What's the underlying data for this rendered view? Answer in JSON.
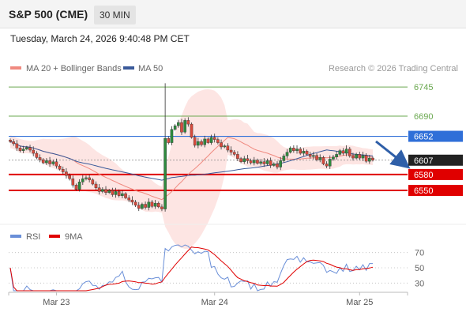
{
  "header": {
    "title": "S&P 500 (CME)",
    "timeframe": "30 MIN"
  },
  "timestamp": "Tuesday, March 24, 2026 9:40:48 PM CET",
  "legend": {
    "ma20_bb": "MA 20 + Bollinger Bands",
    "ma50": "MA 50",
    "copyright": "Research © 2026 Trading Central"
  },
  "rsi_legend": {
    "rsi": "RSI",
    "ma9": "9MA"
  },
  "colors": {
    "support": "#e00000",
    "resistance": "#2f6fd8",
    "current": "#222222",
    "target": "#6aa84f",
    "bollinger": "#fde0de",
    "ma20": "#f08a80",
    "ma50": "#3a5a9a",
    "bull": "#2e8b3e",
    "bear": "#d94a3c",
    "rsi": "#6a8fd8",
    "rsi_ma": "#e00000"
  },
  "chart_data": [
    {
      "type": "candlestick",
      "title": "S&P 500 (CME)",
      "timeframe": "30 MIN",
      "ylim": [
        6495,
        6760
      ],
      "x_labels": [
        "Mar 23",
        "Mar 24",
        "Mar 25"
      ],
      "levels": [
        {
          "label": "6745",
          "value": 6745,
          "kind": "target"
        },
        {
          "label": "6690",
          "value": 6690,
          "kind": "target"
        },
        {
          "label": "6652",
          "value": 6652,
          "kind": "resistance"
        },
        {
          "label": "6607",
          "value": 6607,
          "kind": "last"
        },
        {
          "label": "6580",
          "value": 6580,
          "kind": "support"
        },
        {
          "label": "6550",
          "value": 6550,
          "kind": "support"
        }
      ],
      "close": [
        6642,
        6638,
        6630,
        6625,
        6628,
        6631,
        6626,
        6620,
        6612,
        6608,
        6602,
        6606,
        6600,
        6604,
        6596,
        6590,
        6585,
        6578,
        6572,
        6560,
        6552,
        6566,
        6572,
        6574,
        6570,
        6562,
        6555,
        6548,
        6552,
        6546,
        6550,
        6542,
        6548,
        6540,
        6544,
        6536,
        6532,
        6528,
        6522,
        6516,
        6524,
        6518,
        6528,
        6520,
        6526,
        6519,
        6515,
        6648,
        6640,
        6665,
        6672,
        6678,
        6660,
        6682,
        6675,
        6650,
        6635,
        6642,
        6636,
        6647,
        6640,
        6650,
        6646,
        6640,
        6632,
        6634,
        6626,
        6622,
        6618,
        6610,
        6604,
        6610,
        6606,
        6602,
        6607,
        6601,
        6604,
        6600,
        6606,
        6597,
        6600,
        6594,
        6606,
        6615,
        6622,
        6630,
        6625,
        6628,
        6620,
        6624,
        6618,
        6614,
        6616,
        6608,
        6612,
        6600,
        6596,
        6609,
        6613,
        6618,
        6625,
        6620,
        6628,
        6615,
        6611,
        6618,
        6611,
        6616,
        6605,
        6611,
        6607
      ],
      "series": [
        {
          "name": "RSI",
          "ylim": [
            20,
            80
          ],
          "ticks": [
            70,
            50,
            30
          ]
        }
      ]
    }
  ]
}
